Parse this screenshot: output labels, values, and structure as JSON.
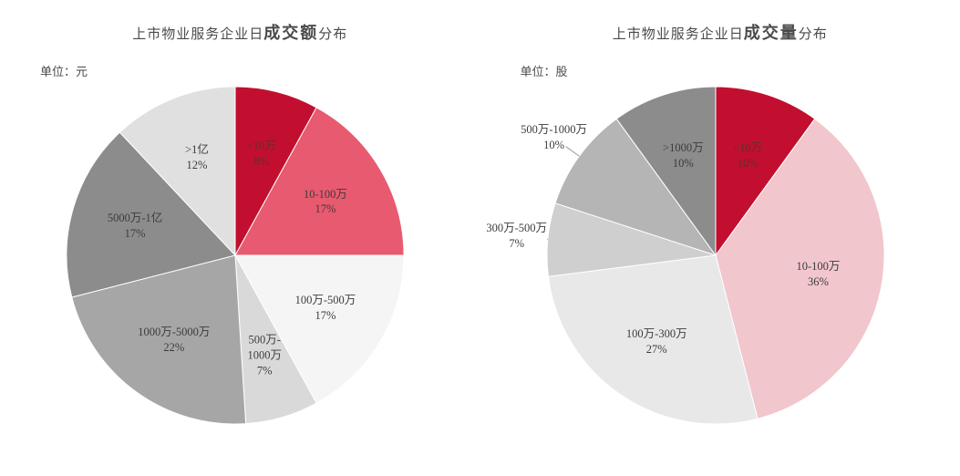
{
  "background_color": "#ffffff",
  "text_color": "#4a4a4a",
  "title_fontsize": 15,
  "title_bold_fontsize": 18,
  "label_fontsize": 12.5,
  "pie_radius": 185,
  "left_chart": {
    "title_parts": [
      "上市物业服务企业日",
      "成交额",
      "分布"
    ],
    "unit": "单位：元",
    "type": "pie",
    "start_angle_deg": -90,
    "slices": [
      {
        "label_line1": "<10万",
        "label_line2": "8%",
        "value": 8,
        "color": "#c20f2f",
        "label_text_color": "#6a2a2a"
      },
      {
        "label_line1": "10-100万",
        "label_line2": "17%",
        "value": 17,
        "color": "#e85a6f"
      },
      {
        "label_line1": "100万-500万",
        "label_line2": "17%",
        "value": 17,
        "color": "#f5f5f5"
      },
      {
        "label_line1": "500万-",
        "label_line2": "1000万",
        "label_line3": "7%",
        "value": 7,
        "color": "#d9d9d9"
      },
      {
        "label_line1": "1000万-5000万",
        "label_line2": "22%",
        "value": 22,
        "color": "#a6a6a6"
      },
      {
        "label_line1": "5000万-1亿",
        "label_line2": "17%",
        "value": 17,
        "color": "#8c8c8c"
      },
      {
        "label_line1": ">1亿",
        "label_line2": "12%",
        "value": 12,
        "color": "#e0e0e0"
      }
    ]
  },
  "right_chart": {
    "title_parts": [
      "上市物业服务企业日",
      "成交量",
      "分布"
    ],
    "unit": "单位：股",
    "type": "pie",
    "start_angle_deg": -90,
    "slices": [
      {
        "label_line1": "<10万",
        "label_line2": "10%",
        "value": 10,
        "color": "#c20f2f",
        "label_text_color": "#6a2a2a"
      },
      {
        "label_line1": "10-100万",
        "label_line2": "36%",
        "value": 36,
        "color": "#f1c6cc"
      },
      {
        "label_line1": "100万-300万",
        "label_line2": "27%",
        "value": 27,
        "color": "#e8e8e8"
      },
      {
        "label_line1": "300万-500万",
        "label_line2": "7%",
        "value": 7,
        "color": "#cfcfcf",
        "label_outside": true
      },
      {
        "label_line1": "500万-1000万",
        "label_line2": "10%",
        "value": 10,
        "color": "#b5b5b5",
        "label_outside": true
      },
      {
        "label_line1": ">1000万",
        "label_line2": "10%",
        "value": 10,
        "color": "#8c8c8c"
      }
    ]
  }
}
